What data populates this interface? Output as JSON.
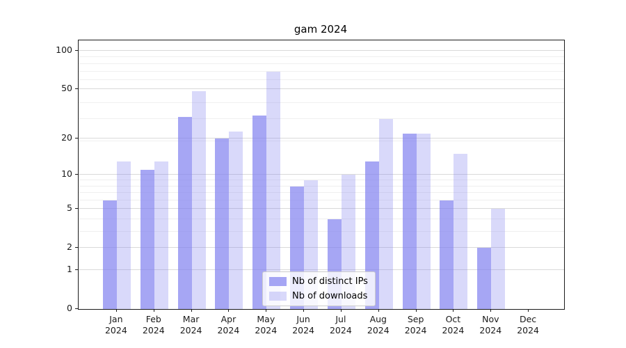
{
  "title": "gam 2024",
  "chart_data": {
    "type": "bar",
    "title": "gam 2024",
    "categories": [
      "Jan 2024",
      "Feb 2024",
      "Mar 2024",
      "Apr 2024",
      "May 2024",
      "Jun 2024",
      "Jul 2024",
      "Aug 2024",
      "Sep 2024",
      "Oct 2024",
      "Nov 2024",
      "Dec 2024"
    ],
    "series": [
      {
        "name": "Nb of distinct IPs",
        "color": "rgba(128,128,239,0.70)",
        "values": [
          6,
          11,
          30,
          20,
          31,
          8,
          4,
          13,
          22,
          6,
          2,
          0
        ]
      },
      {
        "name": "Nb of downloads",
        "color": "rgba(128,128,237,0.30)",
        "values": [
          13,
          13,
          48,
          23,
          69,
          9,
          10,
          29,
          22,
          15,
          5,
          0
        ]
      }
    ],
    "xlabel": "",
    "ylabel": "",
    "yscale": "log(1+x)",
    "ylim": [
      0,
      120
    ],
    "yticks": [
      0,
      1,
      2,
      5,
      10,
      20,
      50,
      100
    ],
    "minor_gridlines": [
      3,
      4,
      6,
      7,
      8,
      9,
      19,
      29,
      39,
      59,
      69,
      79,
      89
    ],
    "grid": "horizontal",
    "legend_position": "lower center inside plot"
  },
  "colors": {
    "grid_major": "#d9d9d9",
    "grid_minor": "#efefef",
    "spine": "#1a1a1a",
    "tick_text": "#1a1a1a"
  }
}
